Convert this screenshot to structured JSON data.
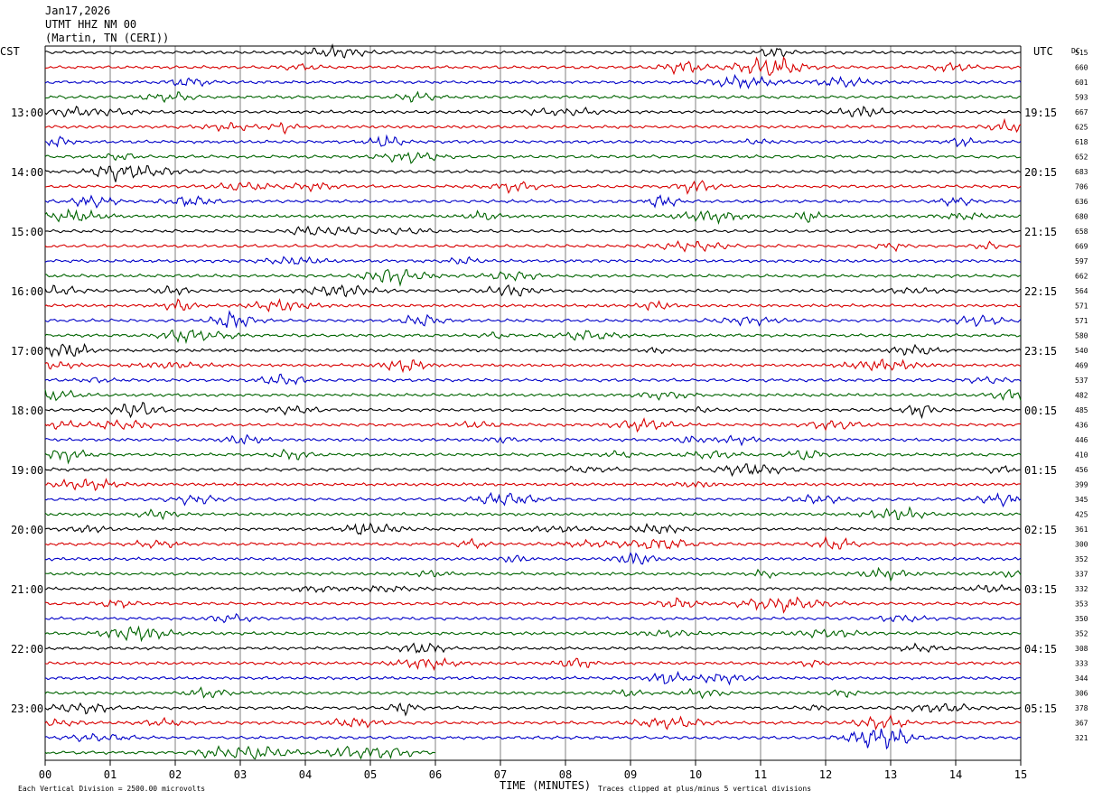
{
  "header": {
    "date": "Jan17,2026",
    "station": "UTMT HHZ NM 00",
    "location": "(Martin, TN (CERI))"
  },
  "labels": {
    "left_tz": "CST",
    "right_tz": "UTC",
    "dc_header": "DC",
    "x_title": "TIME (MINUTES)",
    "scale_note": "Each Vertical Division = 2500.00 microvolts",
    "clip_note": "Traces clipped at plus/minus 5 vertical divisions"
  },
  "colors": {
    "trace_cycle": [
      "#000000",
      "#d80000",
      "#0000c8",
      "#006400"
    ],
    "grid": "#808080",
    "frame": "#000000"
  },
  "chart_data": {
    "type": "line",
    "kind": "helicorder",
    "x_ticks": [
      "00",
      "01",
      "02",
      "03",
      "04",
      "05",
      "06",
      "07",
      "08",
      "09",
      "10",
      "11",
      "12",
      "13",
      "14",
      "15"
    ],
    "xlim": [
      0,
      15
    ],
    "grid": true,
    "rows_total": 48,
    "last_row_end_minute": 6,
    "left_hour_labels": [
      {
        "row": 4,
        "label": "13:00"
      },
      {
        "row": 8,
        "label": "14:00"
      },
      {
        "row": 12,
        "label": "15:00"
      },
      {
        "row": 16,
        "label": "16:00"
      },
      {
        "row": 20,
        "label": "17:00"
      },
      {
        "row": 24,
        "label": "18:00"
      },
      {
        "row": 28,
        "label": "19:00"
      },
      {
        "row": 32,
        "label": "20:00"
      },
      {
        "row": 36,
        "label": "21:00"
      },
      {
        "row": 40,
        "label": "22:00"
      },
      {
        "row": 44,
        "label": "23:00"
      }
    ],
    "right_hour_labels": [
      {
        "row": 4,
        "label": "19:15"
      },
      {
        "row": 8,
        "label": "20:15"
      },
      {
        "row": 12,
        "label": "21:15"
      },
      {
        "row": 16,
        "label": "22:15"
      },
      {
        "row": 20,
        "label": "23:15"
      },
      {
        "row": 24,
        "label": "00:15"
      },
      {
        "row": 28,
        "label": "01:15"
      },
      {
        "row": 32,
        "label": "02:15"
      },
      {
        "row": 36,
        "label": "03:15"
      },
      {
        "row": 40,
        "label": "04:15"
      },
      {
        "row": 44,
        "label": "05:15"
      }
    ],
    "dc_offsets": [
      "515",
      "660",
      "601",
      "593",
      "667",
      "625",
      "618",
      "652",
      "683",
      "706",
      "636",
      "680",
      "658",
      "669",
      "597",
      "662",
      "564",
      "571",
      "571",
      "580",
      "540",
      "469",
      "537",
      "482",
      "485",
      "436",
      "446",
      "410",
      "456",
      "399",
      "345",
      "425",
      "361",
      "300",
      "352",
      "337",
      "332",
      "353",
      "350",
      "352",
      "308",
      "333",
      "344",
      "306",
      "378",
      "367",
      "321"
    ]
  }
}
